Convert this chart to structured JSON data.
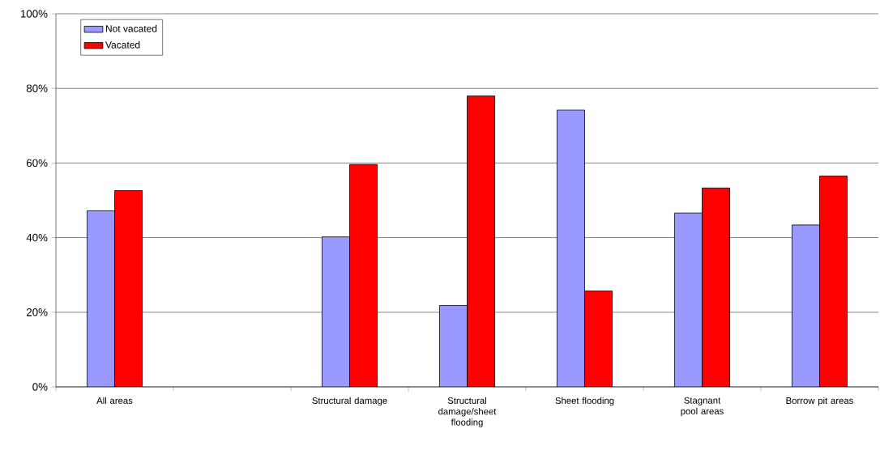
{
  "chart_data": {
    "type": "bar",
    "categories": [
      "All areas",
      null,
      "Structural damage",
      "Structural damage/sheet flooding",
      "Sheet flooding",
      "Stagnant pool areas",
      "Borrow  pit areas"
    ],
    "series": [
      {
        "name": "Not vacated",
        "color": "#9999ff",
        "values": [
          47.2,
          null,
          40.2,
          21.8,
          74.2,
          46.6,
          43.4
        ]
      },
      {
        "name": "Vacated",
        "color": "#ff0000",
        "values": [
          52.6,
          null,
          59.6,
          78.0,
          25.7,
          53.3,
          56.5
        ]
      }
    ],
    "ylim": [
      0,
      100
    ],
    "yticks": [
      {
        "value": 0,
        "label": "0%"
      },
      {
        "value": 20,
        "label": "20%"
      },
      {
        "value": 40,
        "label": "40%"
      },
      {
        "value": 60,
        "label": "60%"
      },
      {
        "value": 80,
        "label": "80%"
      },
      {
        "value": 100,
        "label": "100%"
      }
    ],
    "grid": "y",
    "legend": "top left"
  }
}
